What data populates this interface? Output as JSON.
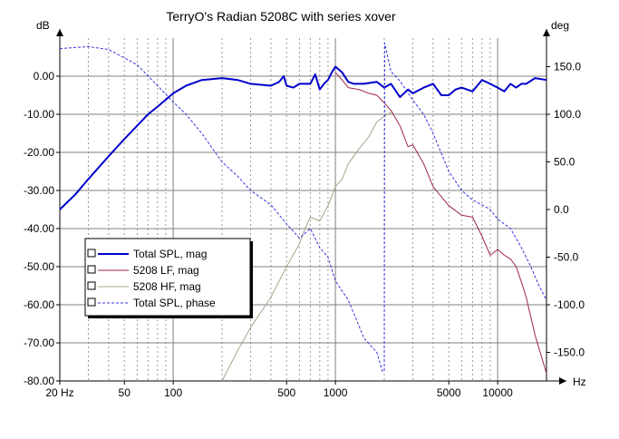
{
  "chart_data": {
    "type": "line",
    "title": "TerryO's Radian 5208C with series xover",
    "y_left_unit": "dB",
    "y_right_unit": "deg",
    "x_unit": "Hz",
    "x_scale": "log",
    "xlim": [
      20,
      20000
    ],
    "ylim_left": [
      -80,
      10
    ],
    "ylim_right": [
      -180,
      180
    ],
    "x_tick_labels": [
      {
        "value": 20,
        "label": "20 Hz"
      },
      {
        "value": 50,
        "label": "50"
      },
      {
        "value": 100,
        "label": "100"
      },
      {
        "value": 500,
        "label": "500"
      },
      {
        "value": 1000,
        "label": "1000"
      },
      {
        "value": 5000,
        "label": "5000"
      },
      {
        "value": 10000,
        "label": "10000"
      }
    ],
    "y_left_ticks": [
      {
        "value": 0,
        "label": "0.00"
      },
      {
        "value": -10,
        "label": "-10.00"
      },
      {
        "value": -20,
        "label": "-20.00"
      },
      {
        "value": -30,
        "label": "-30.00"
      },
      {
        "value": -40,
        "label": "-40.00"
      },
      {
        "value": -50,
        "label": "-50.00"
      },
      {
        "value": -60,
        "label": "-60.00"
      },
      {
        "value": -70,
        "label": "-70.00"
      },
      {
        "value": -80,
        "label": "-80.00"
      }
    ],
    "y_right_ticks": [
      {
        "value": 150,
        "label": "150.0"
      },
      {
        "value": 100,
        "label": "100.0"
      },
      {
        "value": 50,
        "label": "50.0"
      },
      {
        "value": 0,
        "label": "0.0"
      },
      {
        "value": -50,
        "label": "-50.0"
      },
      {
        "value": -100,
        "label": "-100.0"
      },
      {
        "value": -150,
        "label": "-150.0"
      }
    ],
    "grid": true,
    "legend_position": "bottom-left",
    "series": [
      {
        "name": "Total SPL, mag",
        "axis": "left",
        "color": "#0000cc",
        "style": "solid-thick",
        "points": [
          [
            20,
            -35
          ],
          [
            25,
            -31
          ],
          [
            30,
            -27
          ],
          [
            40,
            -21
          ],
          [
            50,
            -16.5
          ],
          [
            60,
            -13
          ],
          [
            70,
            -10
          ],
          [
            80,
            -8
          ],
          [
            100,
            -4.5
          ],
          [
            120,
            -2.5
          ],
          [
            150,
            -1
          ],
          [
            200,
            -0.5
          ],
          [
            250,
            -1
          ],
          [
            300,
            -2
          ],
          [
            400,
            -2.5
          ],
          [
            450,
            -1.5
          ],
          [
            480,
            0
          ],
          [
            500,
            -2.5
          ],
          [
            550,
            -3
          ],
          [
            600,
            -2
          ],
          [
            700,
            -2
          ],
          [
            750,
            0.5
          ],
          [
            800,
            -3.5
          ],
          [
            850,
            -2
          ],
          [
            900,
            -1
          ],
          [
            950,
            1
          ],
          [
            1000,
            2.5
          ],
          [
            1100,
            1
          ],
          [
            1200,
            -1.5
          ],
          [
            1300,
            -2
          ],
          [
            1500,
            -2
          ],
          [
            1800,
            -1.5
          ],
          [
            2000,
            -3
          ],
          [
            2200,
            -2
          ],
          [
            2500,
            -5.5
          ],
          [
            2800,
            -3.5
          ],
          [
            3000,
            -4.5
          ],
          [
            3500,
            -3
          ],
          [
            4000,
            -2
          ],
          [
            4500,
            -5
          ],
          [
            5000,
            -5
          ],
          [
            5500,
            -3.5
          ],
          [
            6000,
            -3
          ],
          [
            7000,
            -4
          ],
          [
            8000,
            -1
          ],
          [
            9000,
            -2
          ],
          [
            10000,
            -3
          ],
          [
            11000,
            -4
          ],
          [
            12000,
            -2
          ],
          [
            13000,
            -3
          ],
          [
            14000,
            -2
          ],
          [
            15000,
            -2
          ],
          [
            17000,
            -0.5
          ],
          [
            20000,
            -1
          ]
        ]
      },
      {
        "name": "5208 LF, mag",
        "axis": "left",
        "color": "#a0244a",
        "style": "solid-thin",
        "points": [
          [
            1000,
            1
          ],
          [
            1100,
            -1
          ],
          [
            1200,
            -3
          ],
          [
            1400,
            -3.5
          ],
          [
            1600,
            -4.5
          ],
          [
            1800,
            -5
          ],
          [
            2000,
            -7
          ],
          [
            2200,
            -9
          ],
          [
            2500,
            -13
          ],
          [
            2800,
            -18.5
          ],
          [
            3000,
            -18
          ],
          [
            3500,
            -23
          ],
          [
            4000,
            -29
          ],
          [
            5000,
            -34
          ],
          [
            6000,
            -36.5
          ],
          [
            7000,
            -37
          ],
          [
            8000,
            -42
          ],
          [
            9000,
            -47
          ],
          [
            10000,
            -45.5
          ],
          [
            11000,
            -47
          ],
          [
            12000,
            -48
          ],
          [
            13000,
            -50
          ],
          [
            14000,
            -54
          ],
          [
            15000,
            -58
          ],
          [
            17000,
            -68
          ],
          [
            20000,
            -78
          ]
        ]
      },
      {
        "name": "5208 HF, mag",
        "axis": "left",
        "color": "#a6a68a",
        "style": "solid-thin",
        "points": [
          [
            200,
            -80
          ],
          [
            250,
            -72
          ],
          [
            300,
            -66
          ],
          [
            400,
            -58
          ],
          [
            500,
            -50
          ],
          [
            600,
            -44
          ],
          [
            650,
            -40
          ],
          [
            700,
            -37
          ],
          [
            800,
            -38
          ],
          [
            900,
            -34
          ],
          [
            1000,
            -29
          ],
          [
            1100,
            -27
          ],
          [
            1200,
            -23
          ],
          [
            1400,
            -19
          ],
          [
            1600,
            -16
          ],
          [
            1800,
            -12
          ],
          [
            2000,
            -10.5
          ],
          [
            2200,
            -9.5
          ]
        ]
      },
      {
        "name": "Total SPL, phase",
        "axis": "right",
        "color": "#3333dd",
        "style": "dashed",
        "points": [
          [
            20,
            169
          ],
          [
            30,
            171
          ],
          [
            40,
            168
          ],
          [
            60,
            152
          ],
          [
            80,
            130
          ],
          [
            100,
            113
          ],
          [
            120,
            100
          ],
          [
            150,
            80
          ],
          [
            200,
            50
          ],
          [
            250,
            35
          ],
          [
            300,
            20
          ],
          [
            400,
            5
          ],
          [
            500,
            -15
          ],
          [
            600,
            -30
          ],
          [
            700,
            -20
          ],
          [
            800,
            -40
          ],
          [
            900,
            -50
          ],
          [
            1000,
            -75
          ],
          [
            1200,
            -95
          ],
          [
            1500,
            -135
          ],
          [
            1800,
            -150
          ],
          [
            1950,
            -170
          ],
          [
            2000,
            -170
          ],
          [
            2010,
            175
          ],
          [
            2200,
            145
          ],
          [
            2500,
            135
          ],
          [
            3000,
            115
          ],
          [
            3500,
            100
          ],
          [
            4000,
            80
          ],
          [
            5000,
            40
          ],
          [
            6000,
            20
          ],
          [
            7000,
            10
          ],
          [
            8000,
            5
          ],
          [
            9000,
            0
          ],
          [
            10000,
            -10
          ],
          [
            12000,
            -20
          ],
          [
            14000,
            -40
          ],
          [
            16000,
            -60
          ],
          [
            18000,
            -80
          ],
          [
            20000,
            -95
          ]
        ]
      }
    ]
  }
}
